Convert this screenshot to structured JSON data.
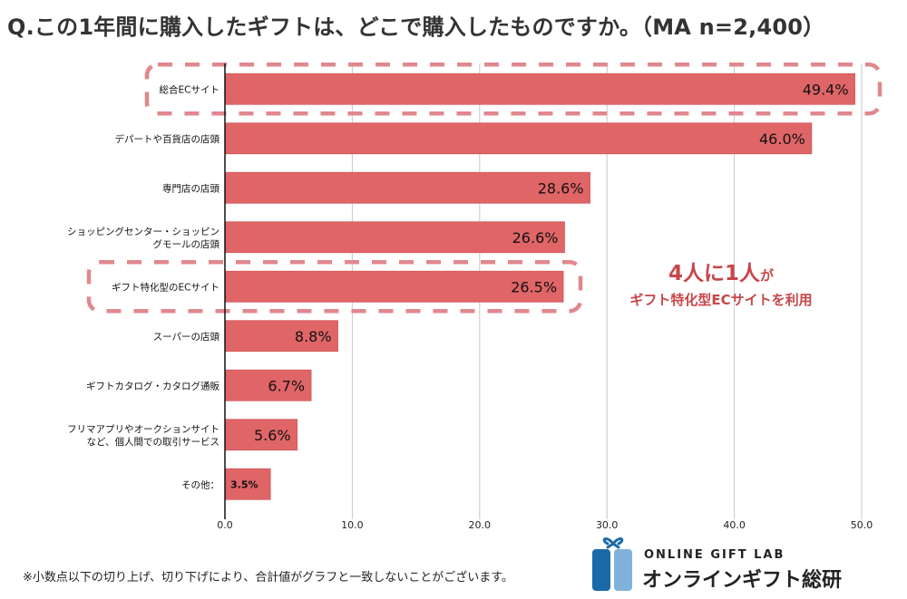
{
  "title": "Q.この1年間に購入したギフトは、どこで購入したものですか。（MA n=2,400）",
  "chart_data": {
    "type": "bar",
    "orientation": "horizontal",
    "title": "Q.この1年間に購入したギフトは、どこで購入したものですか。（MA n=2,400）",
    "xlabel": "",
    "ylabel": "",
    "xlim": [
      0,
      50
    ],
    "x_ticks": [
      "0.0",
      "10.0",
      "20.0",
      "30.0",
      "40.0",
      "50.0"
    ],
    "grid": true,
    "categories": [
      [
        "総合ECサイト"
      ],
      [
        "デパートや百貨店の店頭"
      ],
      [
        "専門店の店頭"
      ],
      [
        "ショッピングセンター・ショッピン",
        "グモールの店頭"
      ],
      [
        "ギフト特化型のECサイト"
      ],
      [
        "スーパーの店頭"
      ],
      [
        "ギフトカタログ・カタログ通販"
      ],
      [
        "フリマアプリやオークションサイト",
        "など、個人間での取引サービス"
      ],
      [
        "その他："
      ]
    ],
    "values": [
      49.4,
      46.0,
      28.6,
      26.6,
      26.5,
      8.8,
      6.7,
      5.6,
      3.5
    ],
    "value_labels": [
      "49.4%",
      "46.0%",
      "28.6%",
      "26.6%",
      "26.5%",
      "8.8%",
      "6.7%",
      "5.6%",
      "3.5%"
    ],
    "highlighted_categories": [
      0,
      4
    ],
    "colors": {
      "bar": "#e06567",
      "highlight_border": "#e0888e",
      "axis": "#111111",
      "grid": "#c8c8c8"
    }
  },
  "callout": {
    "line1_main": "4人に1人",
    "line1_suffix": "が",
    "line2": "ギフト特化型ECサイトを利用",
    "color": "#c8464a"
  },
  "footnote": "※小数点以下の切り上げ、切り下げにより、合計値がグラフと一致しないことがございます。",
  "logo": {
    "name_en": "ONLINE GIFT LAB",
    "name_jp": "オンラインギフト総研",
    "icon": "gift-box-icon",
    "colors": {
      "dark": "#1a6aa8",
      "light": "#7fb2da"
    }
  }
}
